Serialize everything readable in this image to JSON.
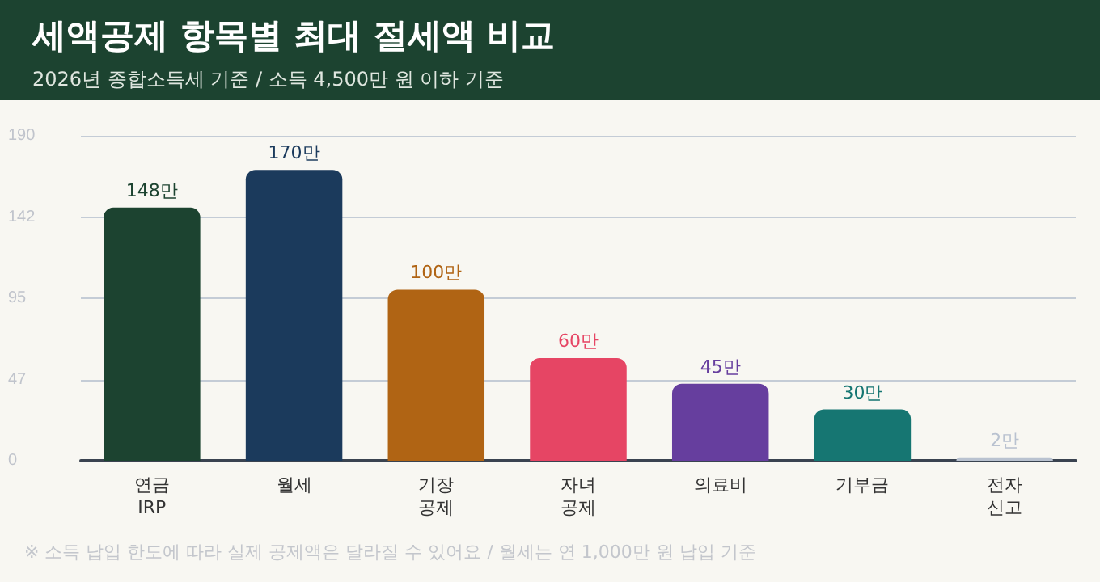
{
  "chart_data": {
    "type": "bar",
    "title": "세액공제 항목별 최대 절세액 비교",
    "subtitle": "2026년 종합소득세 기준 / 소득 4,500만 원 이하 기준",
    "categories": [
      "연금\nIRP",
      "월세",
      "기장\n공제",
      "자녀\n공제",
      "의료비",
      "기부금",
      "전자\n신고"
    ],
    "values": [
      148,
      170,
      100,
      60,
      45,
      30,
      2
    ],
    "value_labels": [
      "148만",
      "170만",
      "100만",
      "60만",
      "45만",
      "30만",
      "2만"
    ],
    "colors": [
      "#1c4330",
      "#1b3a5c",
      "#b06414",
      "#e64564",
      "#663e9e",
      "#167672",
      "#b9c2d0"
    ],
    "ylim": [
      0,
      190
    ],
    "yticks": [
      0,
      {
        "value": 47.5,
        "label": "47"
      },
      95,
      {
        "value": 142.5,
        "label": "142"
      },
      190
    ],
    "grid": "y",
    "annotations": [
      "※ 소득 납입 한도에 따라 실제 공제액은 달라질 수 있어요 / 월세는 연 1,000만 원 납입 기준"
    ]
  }
}
